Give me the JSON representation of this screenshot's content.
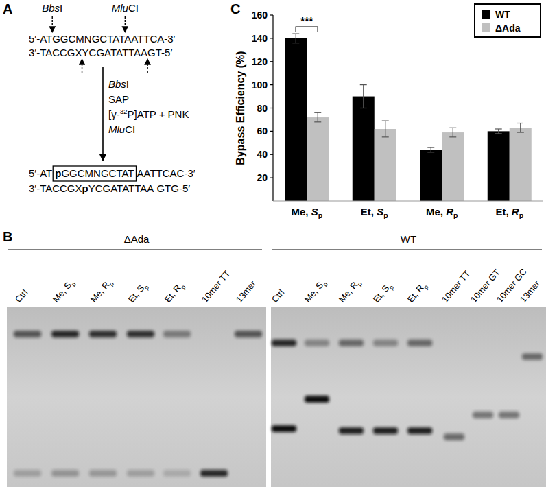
{
  "panel_a": {
    "label": "A",
    "enzymes": [
      {
        "name": [
          {
            "text": "Bbs",
            "style": "italic"
          },
          {
            "text": "I"
          }
        ],
        "top_cut": 5,
        "bottom_cut": 9
      },
      {
        "name": [
          {
            "text": "Mlu",
            "style": "italic"
          },
          {
            "text": "CI"
          }
        ],
        "top_cut": 15,
        "bottom_cut": 19
      }
    ],
    "substrate_top": "5′-ATGGCMNGCTATAATTCA-3′",
    "substrate_bottom": "3′-TACCGXYCGATATTAAGT-5′",
    "steps": [
      [
        {
          "text": "Bbs",
          "style": "italic"
        },
        {
          "text": "I"
        }
      ],
      [
        {
          "text": "SAP"
        }
      ],
      [
        {
          "text": "[γ-"
        },
        {
          "text": "32",
          "style": "sup"
        },
        {
          "text": "P]ATP + PNK"
        }
      ],
      [
        {
          "text": "Mlu",
          "style": "italic"
        },
        {
          "text": "CI"
        }
      ]
    ],
    "product_top": [
      {
        "text": "5′-AT"
      },
      {
        "text": "p",
        "style": "bold",
        "boxed": true
      },
      {
        "text": "GGCMNGCTAT",
        "boxed": true
      },
      {
        "text": "AATTCAC-3′"
      }
    ],
    "product_bottom": [
      {
        "text": "3′-TACCGX"
      },
      {
        "text": "p",
        "style": "bold"
      },
      {
        "text": "YCGATATTAA"
      },
      {
        "text": " GTG-5′"
      }
    ]
  },
  "panel_b": {
    "label": "B",
    "gels": [
      {
        "title": "ΔAda",
        "lanes": [
          "Ctrl",
          "Me, Sp",
          "Me, Rp",
          "Et, Sp",
          "Et, Rp",
          "10mer TT",
          "13mer"
        ]
      },
      {
        "title": "WT",
        "lanes": [
          "Ctrl",
          "Me, Sp",
          "Me, Rp",
          "Et, Sp",
          "Et, Rp",
          "10mer TT",
          "10mer GT",
          "10mer GC",
          "13mer"
        ]
      }
    ]
  },
  "panel_c": {
    "label": "C"
  },
  "chart_data": {
    "type": "bar",
    "y_label": "Bypass Efficiency (%)",
    "categories": [
      "Me, Sp",
      "Et, Sp",
      "Me, Rp",
      "Et, Rp"
    ],
    "series": [
      {
        "name": "WT",
        "color": "#000000",
        "values": [
          140,
          90,
          44,
          60
        ],
        "errors": [
          4,
          10,
          2,
          2
        ]
      },
      {
        "name": "ΔAda",
        "color": "#c0c0c0",
        "values": [
          72,
          62,
          59,
          63
        ],
        "errors": [
          4,
          7,
          4,
          4
        ]
      }
    ],
    "ylim": [
      0,
      160
    ],
    "yticks": [
      20,
      40,
      60,
      80,
      100,
      120,
      140,
      160
    ],
    "legend": "top-right",
    "annotations": [
      {
        "text": "***",
        "category": 0
      }
    ]
  }
}
